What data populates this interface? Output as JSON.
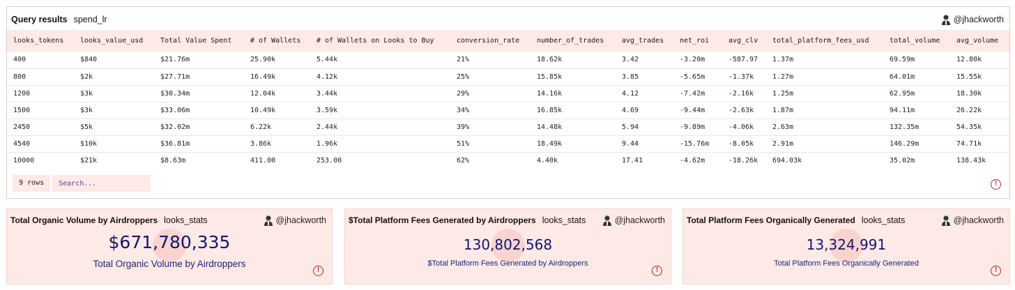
{
  "results": {
    "title": "Query results",
    "query_name": "spend_lr",
    "user": "@jhackworth",
    "columns": [
      "looks_tokens",
      "looks_value_usd",
      "Total Value Spent",
      "# of Wallets",
      "# of Wallets on Looks to Buy",
      "conversion_rate",
      "number_of_trades",
      "avg_trades",
      "net_roi",
      "avg_clv",
      "total_platform_fees_usd",
      "total_volume",
      "avg_volume"
    ],
    "rows": [
      [
        "400",
        "$840",
        "$21.76m",
        "25.90k",
        "5.44k",
        "21%",
        "18.62k",
        "3.42",
        "-3.20m",
        "-587.97",
        "1.37m",
        "69.59m",
        "12.80k"
      ],
      [
        "800",
        "$2k",
        "$27.71m",
        "16.49k",
        "4.12k",
        "25%",
        "15.85k",
        "3.85",
        "-5.65m",
        "-1.37k",
        "1.27m",
        "64.01m",
        "15.55k"
      ],
      [
        "1200",
        "$3k",
        "$30.34m",
        "12.04k",
        "3.44k",
        "29%",
        "14.16k",
        "4.12",
        "-7.42m",
        "-2.16k",
        "1.25m",
        "62.95m",
        "18.30k"
      ],
      [
        "1500",
        "$3k",
        "$33.06m",
        "10.49k",
        "3.59k",
        "34%",
        "16.85k",
        "4.69",
        "-9.44m",
        "-2.63k",
        "1.87m",
        "94.11m",
        "26.22k"
      ],
      [
        "2450",
        "$5k",
        "$32.02m",
        "6.22k",
        "2.44k",
        "39%",
        "14.48k",
        "5.94",
        "-9.89m",
        "-4.06k",
        "2.63m",
        "132.35m",
        "54.35k"
      ],
      [
        "4540",
        "$10k",
        "$36.81m",
        "3.86k",
        "1.96k",
        "51%",
        "18.49k",
        "9.44",
        "-15.76m",
        "-8.05k",
        "2.91m",
        "146.29m",
        "74.71k"
      ],
      [
        "10000",
        "$21k",
        "$8.63m",
        "411.00",
        "253.00",
        "62%",
        "4.40k",
        "17.41",
        "-4.62m",
        "-18.26k",
        "694.03k",
        "35.02m",
        "138.43k"
      ]
    ],
    "row_count": "9 rows",
    "search_placeholder": "Search..."
  },
  "counters": [
    {
      "title": "Total Organic Volume by Airdroppers",
      "query_name": "looks_stats",
      "user": "@jhackworth",
      "value": "$671,780,335",
      "label": "Total Organic Volume by Airdroppers"
    },
    {
      "title": "$Total Platform Fees Generated by Airdroppers",
      "query_name": "looks_stats",
      "user": "@jhackworth",
      "value": "130,802,568",
      "label": "$Total Platform Fees Generated by Airdroppers"
    },
    {
      "title": "Total Platform Fees Organically Generated",
      "query_name": "looks_stats",
      "user": "@jhackworth",
      "value": "13,324,991",
      "label": "Total Platform Fees Organically Generated"
    }
  ],
  "icons": {
    "alert": "alert-circle-icon",
    "avatar": "user-avatar-icon"
  },
  "colors": {
    "accent_bg": "#fde9e6",
    "border": "#f3c6c0",
    "value_text": "#14146b",
    "alert": "#b3262c"
  }
}
